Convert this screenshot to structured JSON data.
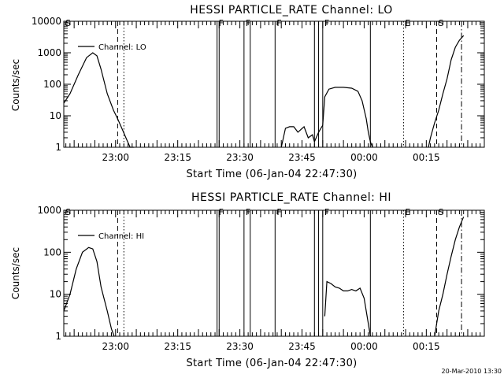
{
  "chart_data": [
    {
      "type": "line",
      "title": "HESSI PARTICLE_RATE Channel: LO",
      "xlabel": "Start Time (06-Jan-04 22:47:30)",
      "ylabel": "Counts/sec",
      "yscale": "log",
      "ylim": [
        1,
        10000
      ],
      "yticks": [
        1,
        10,
        100,
        1000,
        10000
      ],
      "ytick_labels": [
        "1",
        "10",
        "100",
        "1000",
        "10000"
      ],
      "xlim": [
        "22:47:30",
        "00:29:00"
      ],
      "xticks": [
        "23:00",
        "23:15",
        "23:30",
        "23:45",
        "00:00",
        "00:15"
      ],
      "legend": {
        "label": "Channel: LO",
        "position": "top-left"
      },
      "series": [
        {
          "name": "Channel: LO",
          "x": [
            "22:47:30",
            "22:49:00",
            "22:51:00",
            "22:53:00",
            "22:54:30",
            "22:55:30",
            "22:56:30",
            "22:58:00",
            "22:59:30",
            "23:00:30",
            "23:01:30",
            "23:02:30",
            "23:03:30",
            "23:04:30",
            "23:40:00",
            "23:41:00",
            "23:42:00",
            "23:43:00",
            "23:44:00",
            "23:45:30",
            "23:46:30",
            "23:47:30",
            "23:48:00",
            "23:49:00",
            "23:50:00",
            "23:50:30",
            "23:51:30",
            "23:53:00",
            "23:55:00",
            "23:57:00",
            "23:58:30",
            "23:59:30",
            "00:00:30",
            "00:01:00",
            "00:01:30",
            "00:02:00",
            "00:15:30",
            "00:16:00",
            "00:17:00",
            "00:18:00",
            "00:19:00",
            "00:20:00",
            "00:21:00",
            "00:22:00",
            "00:23:00",
            "00:24:00"
          ],
          "y": [
            25,
            50,
            200,
            700,
            1000,
            800,
            300,
            50,
            15,
            8,
            4,
            2,
            1,
            1,
            1,
            4,
            4.5,
            4.5,
            3,
            4.5,
            2,
            2.5,
            1.5,
            3,
            5,
            40,
            70,
            80,
            80,
            75,
            60,
            30,
            8,
            3,
            1.5,
            1,
            1,
            2,
            6,
            15,
            50,
            150,
            600,
            1500,
            2500,
            3500
          ]
        }
      ],
      "markers": [
        {
          "label": "S",
          "time": "22:47:30",
          "style": "none"
        },
        {
          "label": "",
          "time": "23:00:30",
          "style": "dashed"
        },
        {
          "label": "",
          "time": "23:02:00",
          "style": "dotted"
        },
        {
          "label": "F",
          "time": "23:24:30",
          "style": "solid"
        },
        {
          "label": "",
          "time": "23:25:00",
          "style": "solid"
        },
        {
          "label": "F",
          "time": "23:31:00",
          "style": "solid"
        },
        {
          "label": "",
          "time": "23:32:30",
          "style": "solid"
        },
        {
          "label": "F",
          "time": "23:38:30",
          "style": "solid"
        },
        {
          "label": "",
          "time": "23:48:00",
          "style": "solid"
        },
        {
          "label": "",
          "time": "23:49:00",
          "style": "solid"
        },
        {
          "label": "F",
          "time": "23:50:00",
          "style": "solid"
        },
        {
          "label": "",
          "time": "00:01:30",
          "style": "solid"
        },
        {
          "label": "E",
          "time": "00:09:30",
          "style": "dotted"
        },
        {
          "label": "S",
          "time": "00:17:30",
          "style": "dashed"
        },
        {
          "label": "",
          "time": "00:23:30",
          "style": "dashdot"
        }
      ]
    },
    {
      "type": "line",
      "title": "HESSI PARTICLE_RATE Channel: HI",
      "xlabel": "Start Time (06-Jan-04 22:47:30)",
      "ylabel": "Counts/sec",
      "yscale": "log",
      "ylim": [
        1,
        1000
      ],
      "yticks": [
        1,
        10,
        100,
        1000
      ],
      "ytick_labels": [
        "1",
        "10",
        "100",
        "1000"
      ],
      "xlim": [
        "22:47:30",
        "00:29:00"
      ],
      "xticks": [
        "23:00",
        "23:15",
        "23:30",
        "23:45",
        "00:00",
        "00:15"
      ],
      "legend": {
        "label": "Channel: HI",
        "position": "top-left"
      },
      "series": [
        {
          "name": "Channel: HI",
          "x": [
            "22:47:30",
            "22:49:00",
            "22:50:30",
            "22:52:00",
            "22:53:30",
            "22:54:30",
            "22:55:30",
            "22:56:30",
            "22:58:00",
            "22:59:00",
            "22:59:40",
            "23:50:30",
            "23:51:00",
            "23:52:00",
            "23:53:00",
            "23:54:00",
            "23:55:00",
            "23:56:00",
            "23:57:00",
            "23:58:00",
            "23:59:00",
            "00:00:00",
            "00:01:00",
            "00:01:30",
            "00:17:00",
            "00:18:00",
            "00:19:00",
            "00:20:00",
            "00:21:00",
            "00:22:00",
            "00:23:00",
            "00:24:00"
          ],
          "y": [
            4,
            10,
            40,
            100,
            130,
            120,
            60,
            15,
            4,
            1.5,
            1,
            3,
            20,
            18,
            15,
            14,
            12,
            12,
            13,
            12,
            14,
            8,
            2,
            1,
            1,
            4,
            10,
            30,
            80,
            200,
            400,
            700
          ]
        }
      ],
      "markers": [
        {
          "label": "S",
          "time": "22:47:30",
          "style": "none"
        },
        {
          "label": "",
          "time": "23:00:30",
          "style": "dashed"
        },
        {
          "label": "",
          "time": "23:02:00",
          "style": "dotted"
        },
        {
          "label": "F",
          "time": "23:24:30",
          "style": "solid"
        },
        {
          "label": "",
          "time": "23:25:00",
          "style": "solid"
        },
        {
          "label": "F",
          "time": "23:31:00",
          "style": "solid"
        },
        {
          "label": "",
          "time": "23:32:30",
          "style": "solid"
        },
        {
          "label": "F",
          "time": "23:38:30",
          "style": "solid"
        },
        {
          "label": "",
          "time": "23:48:00",
          "style": "solid"
        },
        {
          "label": "",
          "time": "23:49:00",
          "style": "solid"
        },
        {
          "label": "F",
          "time": "23:50:00",
          "style": "solid"
        },
        {
          "label": "",
          "time": "00:01:30",
          "style": "solid"
        },
        {
          "label": "E",
          "time": "00:09:30",
          "style": "dotted"
        },
        {
          "label": "S",
          "time": "00:17:30",
          "style": "dashed"
        },
        {
          "label": "",
          "time": "00:23:30",
          "style": "dashdot"
        }
      ]
    }
  ],
  "timestamp": "20-Mar-2010 13:30"
}
